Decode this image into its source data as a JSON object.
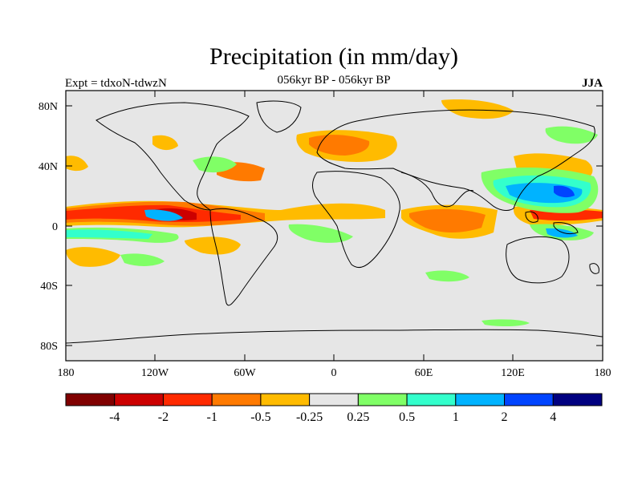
{
  "title": "Precipitation (in mm/day)",
  "subtitle": "056kyr BP - 056kyr BP",
  "left_label": "Expt = tdxoN-tdwzN",
  "right_label": "JJA",
  "y_ticks": [
    "80N",
    "40N",
    "0",
    "40S",
    "80S"
  ],
  "x_ticks": [
    "180",
    "120W",
    "60W",
    "0",
    "60E",
    "120E",
    "180"
  ],
  "colorbar": {
    "colors": [
      "#800000",
      "#cc0000",
      "#ff2a00",
      "#ff7a00",
      "#ffbb00",
      "#e6e6e6",
      "#80ff66",
      "#33ffcc",
      "#00b3ff",
      "#0044ff",
      "#000080"
    ],
    "labels": [
      "-4",
      "-2",
      "-1",
      "-0.5",
      "-0.25",
      "0.25",
      "0.5",
      "1",
      "2",
      "4"
    ]
  },
  "background_color": "#e6e6e6"
}
